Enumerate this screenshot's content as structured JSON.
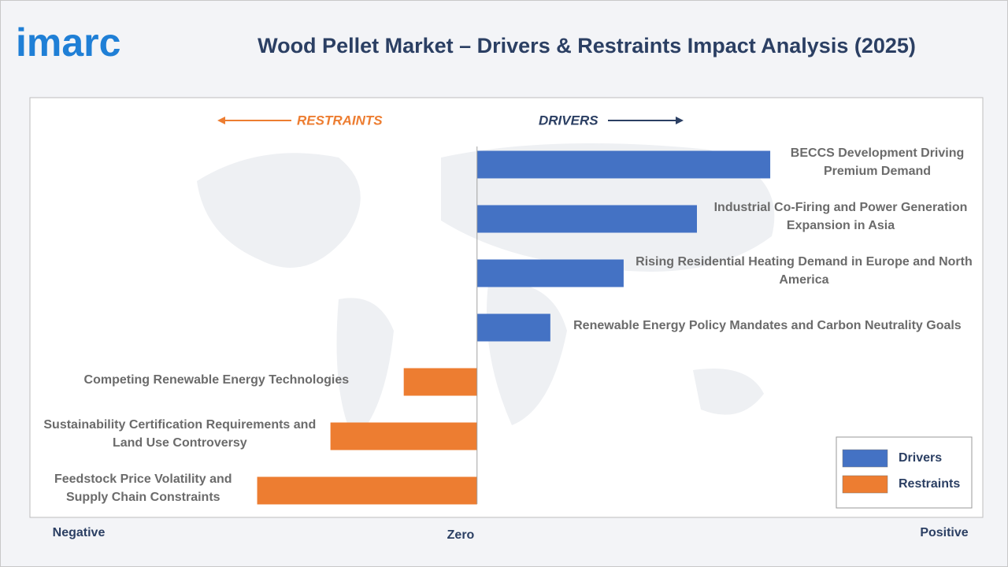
{
  "logo": "imarc",
  "chart_data": {
    "type": "diverging-bar",
    "title": "Wood Pellet Market – Drivers & Restraints Impact Analysis (2025)",
    "annotations": {
      "left": "RESTRAINTS",
      "right": "DRIVERS"
    },
    "axis_labels": {
      "negative": "Negative",
      "zero": "Zero",
      "positive": "Positive"
    },
    "categories": [
      "BECCS Development Driving Premium Demand",
      "Industrial Co-Firing and Power Generation Expansion in Asia",
      "Rising Residential Heating Demand in Europe and North America",
      "Renewable Energy Policy Mandates and Carbon Neutrality Goals",
      "Competing Renewable Energy Technologies",
      "Sustainability Certification Requirements and Land Use Controversy",
      "Feedstock Price Volatility and Supply Chain Constraints"
    ],
    "series": [
      {
        "name": "Drivers",
        "color": "#4472c4",
        "values": [
          4,
          3,
          2,
          1,
          null,
          null,
          null
        ]
      },
      {
        "name": "Restraints",
        "color": "#ed7d31",
        "values": [
          null,
          null,
          null,
          null,
          -1,
          -2,
          -3
        ]
      }
    ],
    "xlim": [
      -6.1,
      6.9
    ],
    "legend": "bottom-right"
  }
}
